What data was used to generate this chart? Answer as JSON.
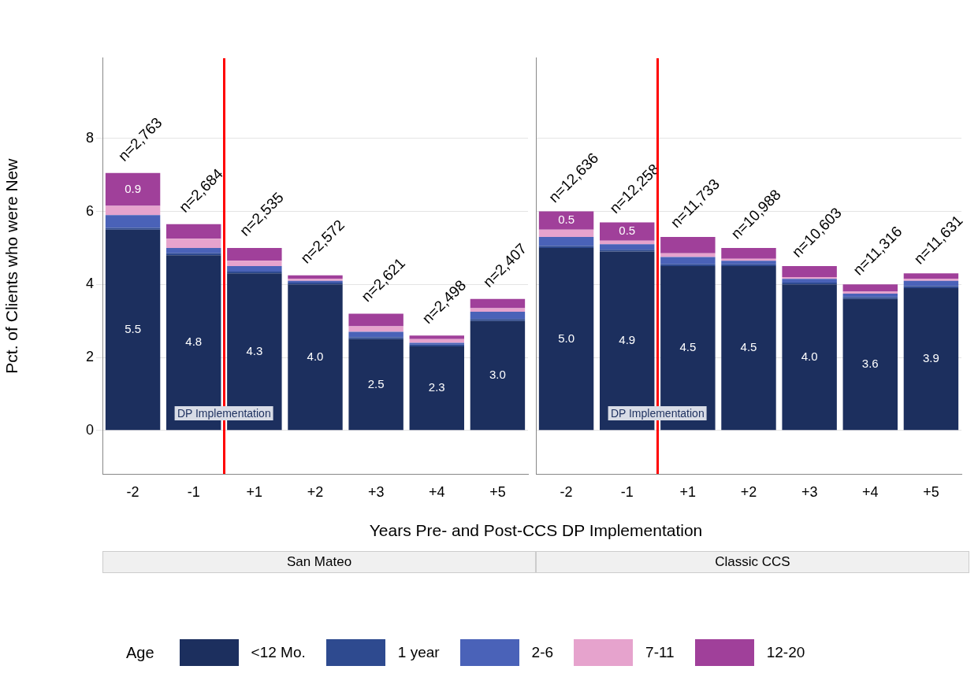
{
  "chart_data": [
    {
      "type": "bar",
      "title": "San Mateo",
      "xlabel": "Years Pre- and Post-CCS DP Implementation",
      "ylabel": "Pct. of Clients who were New",
      "legend_title": "Age",
      "legend": "bottom",
      "stacked": true,
      "grid": "y",
      "categories": [
        "-2",
        "-1",
        "+1",
        "+2",
        "+3",
        "+4",
        "+5"
      ],
      "ylim": [
        -1.2,
        10.2
      ],
      "yticks": [
        0,
        2,
        4,
        6,
        8
      ],
      "series": [
        {
          "name": "<12 Mo.",
          "color": "#1c2f5e",
          "values": [
            5.5,
            4.8,
            4.3,
            4.0,
            2.5,
            2.3,
            3.0
          ],
          "value_labels": [
            "5.5",
            "4.8",
            "4.3",
            "4.0",
            "2.5",
            "2.3",
            "3.0"
          ]
        },
        {
          "name": "1 year",
          "color": "#2e4a8f",
          "values": [
            0.05,
            0.05,
            0.05,
            0.05,
            0.05,
            0.05,
            0.05
          ]
        },
        {
          "name": "2-6",
          "color": "#4a62b8",
          "values": [
            0.35,
            0.15,
            0.15,
            0.05,
            0.15,
            0.05,
            0.2
          ]
        },
        {
          "name": "7-11",
          "color": "#e6a3cd",
          "values": [
            0.25,
            0.25,
            0.15,
            0.05,
            0.15,
            0.1,
            0.1
          ]
        },
        {
          "name": "12-20",
          "color": "#a0409a",
          "values": [
            0.9,
            0.4,
            0.35,
            0.1,
            0.35,
            0.1,
            0.25
          ],
          "value_labels": [
            "0.9",
            null,
            null,
            null,
            null,
            null,
            null
          ]
        }
      ],
      "annotations": [
        "DP Implementation",
        "n=2,763",
        "n=2,684",
        "n=2,535",
        "n=2,572",
        "n=2,621",
        "n=2,498",
        "n=2,407"
      ]
    },
    {
      "type": "bar",
      "title": "Classic CCS",
      "stacked": true,
      "grid": "y",
      "tick_labels": "x",
      "categories": [
        "-2",
        "-1",
        "+1",
        "+2",
        "+3",
        "+4",
        "+5"
      ],
      "ylim": [
        -1.2,
        10.2
      ],
      "yticks": [
        0,
        2,
        4,
        6,
        8
      ],
      "series": [
        {
          "color": "#1c2f5e",
          "values": [
            5.0,
            4.9,
            4.5,
            4.5,
            4.0,
            3.6,
            3.9
          ],
          "value_labels": [
            "5.0",
            "4.9",
            "4.5",
            "4.5",
            "4.0",
            "3.6",
            "3.9"
          ]
        },
        {
          "color": "#2e4a8f",
          "values": [
            0.05,
            0.05,
            0.05,
            0.05,
            0.05,
            0.05,
            0.05
          ]
        },
        {
          "color": "#4a62b8",
          "values": [
            0.25,
            0.15,
            0.2,
            0.1,
            0.1,
            0.1,
            0.15
          ]
        },
        {
          "color": "#e6a3cd",
          "values": [
            0.2,
            0.1,
            0.1,
            0.05,
            0.05,
            0.05,
            0.05
          ]
        },
        {
          "color": "#a0409a",
          "values": [
            0.5,
            0.5,
            0.45,
            0.3,
            0.3,
            0.2,
            0.15
          ],
          "value_labels": [
            "0.5",
            "0.5",
            null,
            null,
            null,
            null,
            null
          ]
        }
      ],
      "annotations": [
        "DP Implementation",
        "n=12,636",
        "n=12,258",
        "n=11,733",
        "n=10,988",
        "n=10,603",
        "n=11,316",
        "n=11,631"
      ]
    }
  ]
}
